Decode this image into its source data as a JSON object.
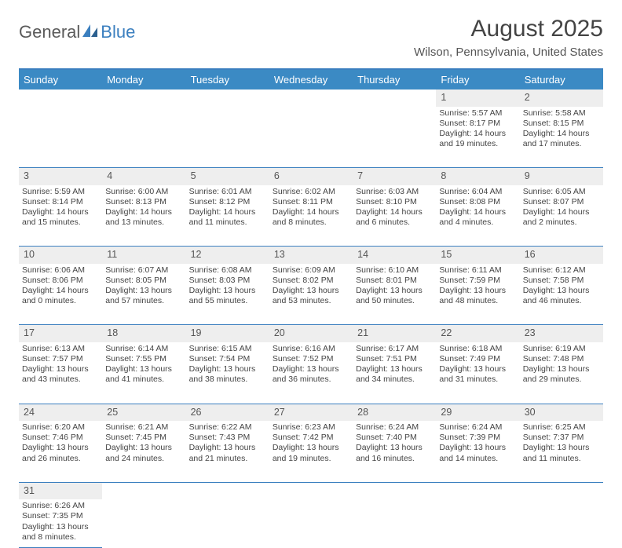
{
  "logo": {
    "text1": "General",
    "text2": "Blue"
  },
  "title": "August 2025",
  "location": "Wilson, Pennsylvania, United States",
  "colors": {
    "header_bg": "#3b8ac4",
    "header_text": "#ffffff",
    "border": "#3b7fbf",
    "daynum_bg": "#eeeeee",
    "text": "#444444"
  },
  "weekdays": [
    "Sunday",
    "Monday",
    "Tuesday",
    "Wednesday",
    "Thursday",
    "Friday",
    "Saturday"
  ],
  "weeks": [
    {
      "nums": [
        "",
        "",
        "",
        "",
        "",
        "1",
        "2"
      ],
      "cells": [
        null,
        null,
        null,
        null,
        null,
        {
          "sr": "Sunrise: 5:57 AM",
          "ss": "Sunset: 8:17 PM",
          "d1": "Daylight: 14 hours",
          "d2": "and 19 minutes."
        },
        {
          "sr": "Sunrise: 5:58 AM",
          "ss": "Sunset: 8:15 PM",
          "d1": "Daylight: 14 hours",
          "d2": "and 17 minutes."
        }
      ]
    },
    {
      "nums": [
        "3",
        "4",
        "5",
        "6",
        "7",
        "8",
        "9"
      ],
      "cells": [
        {
          "sr": "Sunrise: 5:59 AM",
          "ss": "Sunset: 8:14 PM",
          "d1": "Daylight: 14 hours",
          "d2": "and 15 minutes."
        },
        {
          "sr": "Sunrise: 6:00 AM",
          "ss": "Sunset: 8:13 PM",
          "d1": "Daylight: 14 hours",
          "d2": "and 13 minutes."
        },
        {
          "sr": "Sunrise: 6:01 AM",
          "ss": "Sunset: 8:12 PM",
          "d1": "Daylight: 14 hours",
          "d2": "and 11 minutes."
        },
        {
          "sr": "Sunrise: 6:02 AM",
          "ss": "Sunset: 8:11 PM",
          "d1": "Daylight: 14 hours",
          "d2": "and 8 minutes."
        },
        {
          "sr": "Sunrise: 6:03 AM",
          "ss": "Sunset: 8:10 PM",
          "d1": "Daylight: 14 hours",
          "d2": "and 6 minutes."
        },
        {
          "sr": "Sunrise: 6:04 AM",
          "ss": "Sunset: 8:08 PM",
          "d1": "Daylight: 14 hours",
          "d2": "and 4 minutes."
        },
        {
          "sr": "Sunrise: 6:05 AM",
          "ss": "Sunset: 8:07 PM",
          "d1": "Daylight: 14 hours",
          "d2": "and 2 minutes."
        }
      ]
    },
    {
      "nums": [
        "10",
        "11",
        "12",
        "13",
        "14",
        "15",
        "16"
      ],
      "cells": [
        {
          "sr": "Sunrise: 6:06 AM",
          "ss": "Sunset: 8:06 PM",
          "d1": "Daylight: 14 hours",
          "d2": "and 0 minutes."
        },
        {
          "sr": "Sunrise: 6:07 AM",
          "ss": "Sunset: 8:05 PM",
          "d1": "Daylight: 13 hours",
          "d2": "and 57 minutes."
        },
        {
          "sr": "Sunrise: 6:08 AM",
          "ss": "Sunset: 8:03 PM",
          "d1": "Daylight: 13 hours",
          "d2": "and 55 minutes."
        },
        {
          "sr": "Sunrise: 6:09 AM",
          "ss": "Sunset: 8:02 PM",
          "d1": "Daylight: 13 hours",
          "d2": "and 53 minutes."
        },
        {
          "sr": "Sunrise: 6:10 AM",
          "ss": "Sunset: 8:01 PM",
          "d1": "Daylight: 13 hours",
          "d2": "and 50 minutes."
        },
        {
          "sr": "Sunrise: 6:11 AM",
          "ss": "Sunset: 7:59 PM",
          "d1": "Daylight: 13 hours",
          "d2": "and 48 minutes."
        },
        {
          "sr": "Sunrise: 6:12 AM",
          "ss": "Sunset: 7:58 PM",
          "d1": "Daylight: 13 hours",
          "d2": "and 46 minutes."
        }
      ]
    },
    {
      "nums": [
        "17",
        "18",
        "19",
        "20",
        "21",
        "22",
        "23"
      ],
      "cells": [
        {
          "sr": "Sunrise: 6:13 AM",
          "ss": "Sunset: 7:57 PM",
          "d1": "Daylight: 13 hours",
          "d2": "and 43 minutes."
        },
        {
          "sr": "Sunrise: 6:14 AM",
          "ss": "Sunset: 7:55 PM",
          "d1": "Daylight: 13 hours",
          "d2": "and 41 minutes."
        },
        {
          "sr": "Sunrise: 6:15 AM",
          "ss": "Sunset: 7:54 PM",
          "d1": "Daylight: 13 hours",
          "d2": "and 38 minutes."
        },
        {
          "sr": "Sunrise: 6:16 AM",
          "ss": "Sunset: 7:52 PM",
          "d1": "Daylight: 13 hours",
          "d2": "and 36 minutes."
        },
        {
          "sr": "Sunrise: 6:17 AM",
          "ss": "Sunset: 7:51 PM",
          "d1": "Daylight: 13 hours",
          "d2": "and 34 minutes."
        },
        {
          "sr": "Sunrise: 6:18 AM",
          "ss": "Sunset: 7:49 PM",
          "d1": "Daylight: 13 hours",
          "d2": "and 31 minutes."
        },
        {
          "sr": "Sunrise: 6:19 AM",
          "ss": "Sunset: 7:48 PM",
          "d1": "Daylight: 13 hours",
          "d2": "and 29 minutes."
        }
      ]
    },
    {
      "nums": [
        "24",
        "25",
        "26",
        "27",
        "28",
        "29",
        "30"
      ],
      "cells": [
        {
          "sr": "Sunrise: 6:20 AM",
          "ss": "Sunset: 7:46 PM",
          "d1": "Daylight: 13 hours",
          "d2": "and 26 minutes."
        },
        {
          "sr": "Sunrise: 6:21 AM",
          "ss": "Sunset: 7:45 PM",
          "d1": "Daylight: 13 hours",
          "d2": "and 24 minutes."
        },
        {
          "sr": "Sunrise: 6:22 AM",
          "ss": "Sunset: 7:43 PM",
          "d1": "Daylight: 13 hours",
          "d2": "and 21 minutes."
        },
        {
          "sr": "Sunrise: 6:23 AM",
          "ss": "Sunset: 7:42 PM",
          "d1": "Daylight: 13 hours",
          "d2": "and 19 minutes."
        },
        {
          "sr": "Sunrise: 6:24 AM",
          "ss": "Sunset: 7:40 PM",
          "d1": "Daylight: 13 hours",
          "d2": "and 16 minutes."
        },
        {
          "sr": "Sunrise: 6:24 AM",
          "ss": "Sunset: 7:39 PM",
          "d1": "Daylight: 13 hours",
          "d2": "and 14 minutes."
        },
        {
          "sr": "Sunrise: 6:25 AM",
          "ss": "Sunset: 7:37 PM",
          "d1": "Daylight: 13 hours",
          "d2": "and 11 minutes."
        }
      ]
    },
    {
      "nums": [
        "31",
        "",
        "",
        "",
        "",
        "",
        ""
      ],
      "cells": [
        {
          "sr": "Sunrise: 6:26 AM",
          "ss": "Sunset: 7:35 PM",
          "d1": "Daylight: 13 hours",
          "d2": "and 8 minutes."
        },
        null,
        null,
        null,
        null,
        null,
        null
      ]
    }
  ]
}
